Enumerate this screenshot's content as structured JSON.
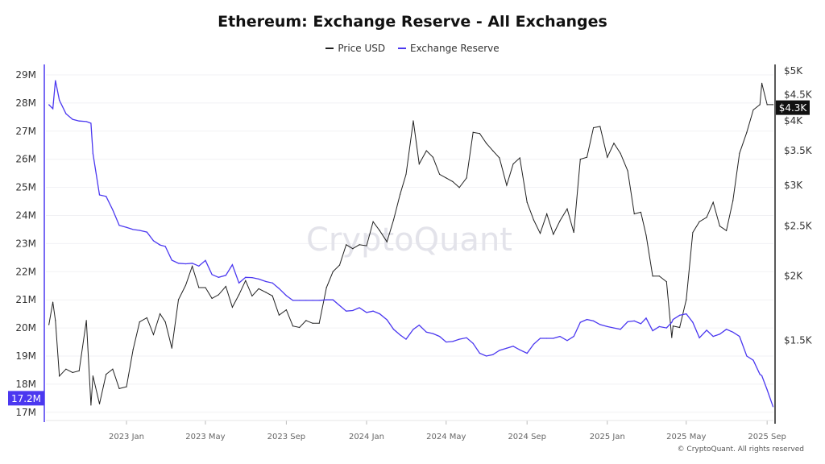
{
  "chart_data": {
    "type": "line",
    "title": "Ethereum: Exchange Reserve - All Exchanges",
    "watermark": "CryptoQuant",
    "copyright": "© CryptoQuant. All rights reserved",
    "legend_placement": "top-center",
    "grid": true,
    "x_ticks": [
      {
        "date": "2023-01-01",
        "label": "2023 Jan"
      },
      {
        "date": "2023-05-01",
        "label": "2023 May"
      },
      {
        "date": "2023-09-01",
        "label": "2023 Sep"
      },
      {
        "date": "2024-01-01",
        "label": "2024 Jan"
      },
      {
        "date": "2024-05-01",
        "label": "2024 May"
      },
      {
        "date": "2024-09-01",
        "label": "2024 Sep"
      },
      {
        "date": "2025-01-01",
        "label": "2025 Jan"
      },
      {
        "date": "2025-05-01",
        "label": "2025 May"
      },
      {
        "date": "2025-09-01",
        "label": "2025 Sep"
      }
    ],
    "left_axis": {
      "series": "Exchange Reserve",
      "ticks": [
        29000000,
        28000000,
        27000000,
        26000000,
        25000000,
        24000000,
        23000000,
        22000000,
        21000000,
        20000000,
        19000000,
        18000000,
        17000000
      ],
      "tick_labels": [
        "29M",
        "28M",
        "27M",
        "26M",
        "25M",
        "24M",
        "23M",
        "22M",
        "21M",
        "20M",
        "19M",
        "18M",
        "17M"
      ],
      "current_label": "17.2M",
      "color": "#4b38f0"
    },
    "right_axis": {
      "series": "Price USD",
      "scale": "log",
      "ticks": [
        5000,
        4500,
        4000,
        3500,
        3000,
        2500,
        2000,
        1500
      ],
      "tick_labels": [
        "$5K",
        "$4.5K",
        "$4K",
        "$3.5K",
        "$3K",
        "$2.5K",
        "$2K",
        "$1.5K"
      ],
      "current_label": "$4.3K",
      "color": "#222222"
    },
    "series": [
      {
        "name": "Price USD",
        "axis": "right",
        "color": "#222222"
      },
      {
        "name": "Exchange Reserve",
        "axis": "left",
        "color": "#4b38f0"
      }
    ],
    "points": [
      [
        "2022-09-05",
        27.94,
        1610
      ],
      [
        "2022-09-11",
        27.8,
        1780
      ],
      [
        "2022-09-15",
        28.8,
        1640
      ],
      [
        "2022-09-21",
        28.1,
        1280
      ],
      [
        "2022-10-01",
        27.62,
        1320
      ],
      [
        "2022-10-11",
        27.42,
        1300
      ],
      [
        "2022-10-21",
        27.36,
        1310
      ],
      [
        "2022-11-01",
        27.34,
        1640
      ],
      [
        "2022-11-08",
        27.28,
        1124
      ],
      [
        "2022-11-11",
        26.2,
        1280
      ],
      [
        "2022-11-21",
        24.73,
        1130
      ],
      [
        "2022-12-01",
        24.68,
        1290
      ],
      [
        "2022-12-11",
        24.2,
        1320
      ],
      [
        "2022-12-21",
        23.65,
        1210
      ],
      [
        "2023-01-01",
        23.58,
        1220
      ],
      [
        "2023-01-11",
        23.5,
        1440
      ],
      [
        "2023-01-21",
        23.47,
        1630
      ],
      [
        "2023-02-01",
        23.41,
        1660
      ],
      [
        "2023-02-11",
        23.1,
        1540
      ],
      [
        "2023-02-21",
        22.95,
        1690
      ],
      [
        "2023-03-01",
        22.9,
        1630
      ],
      [
        "2023-03-11",
        22.41,
        1450
      ],
      [
        "2023-03-21",
        22.3,
        1800
      ],
      [
        "2023-04-01",
        22.28,
        1920
      ],
      [
        "2023-04-11",
        22.3,
        2090
      ],
      [
        "2023-04-21",
        22.2,
        1900
      ],
      [
        "2023-05-01",
        22.4,
        1900
      ],
      [
        "2023-05-11",
        21.9,
        1810
      ],
      [
        "2023-05-21",
        21.8,
        1840
      ],
      [
        "2023-06-01",
        21.87,
        1910
      ],
      [
        "2023-06-11",
        22.25,
        1740
      ],
      [
        "2023-06-21",
        21.6,
        1840
      ],
      [
        "2023-07-01",
        21.8,
        1960
      ],
      [
        "2023-07-11",
        21.79,
        1830
      ],
      [
        "2023-07-21",
        21.74,
        1890
      ],
      [
        "2023-08-01",
        21.65,
        1860
      ],
      [
        "2023-08-11",
        21.6,
        1830
      ],
      [
        "2023-08-21",
        21.4,
        1680
      ],
      [
        "2023-09-01",
        21.15,
        1720
      ],
      [
        "2023-09-11",
        20.98,
        1600
      ],
      [
        "2023-09-21",
        20.98,
        1590
      ],
      [
        "2023-10-01",
        20.98,
        1640
      ],
      [
        "2023-10-11",
        20.98,
        1620
      ],
      [
        "2023-10-21",
        20.98,
        1620
      ],
      [
        "2023-11-01",
        21.0,
        1900
      ],
      [
        "2023-11-11",
        21.0,
        2040
      ],
      [
        "2023-11-21",
        20.8,
        2100
      ],
      [
        "2023-12-01",
        20.6,
        2300
      ],
      [
        "2023-12-11",
        20.62,
        2260
      ],
      [
        "2023-12-21",
        20.72,
        2300
      ],
      [
        "2024-01-01",
        20.55,
        2290
      ],
      [
        "2024-01-11",
        20.6,
        2550
      ],
      [
        "2024-01-21",
        20.5,
        2450
      ],
      [
        "2024-02-01",
        20.29,
        2330
      ],
      [
        "2024-02-11",
        19.95,
        2570
      ],
      [
        "2024-02-21",
        19.75,
        2880
      ],
      [
        "2024-03-01",
        19.6,
        3150
      ],
      [
        "2024-03-12",
        19.95,
        4000
      ],
      [
        "2024-03-21",
        20.1,
        3300
      ],
      [
        "2024-04-01",
        19.85,
        3500
      ],
      [
        "2024-04-11",
        19.8,
        3400
      ],
      [
        "2024-04-21",
        19.7,
        3150
      ],
      [
        "2024-05-01",
        19.5,
        3100
      ],
      [
        "2024-05-11",
        19.52,
        3050
      ],
      [
        "2024-05-21",
        19.6,
        2970
      ],
      [
        "2024-06-01",
        19.65,
        3100
      ],
      [
        "2024-06-11",
        19.45,
        3800
      ],
      [
        "2024-06-21",
        19.1,
        3780
      ],
      [
        "2024-07-01",
        19.0,
        3620
      ],
      [
        "2024-07-11",
        19.05,
        3500
      ],
      [
        "2024-07-21",
        19.2,
        3390
      ],
      [
        "2024-08-01",
        19.28,
        3000
      ],
      [
        "2024-08-11",
        19.35,
        3300
      ],
      [
        "2024-08-21",
        19.22,
        3390
      ],
      [
        "2024-09-01",
        19.1,
        2780
      ],
      [
        "2024-09-11",
        19.42,
        2570
      ],
      [
        "2024-09-21",
        19.63,
        2420
      ],
      [
        "2024-10-01",
        19.63,
        2640
      ],
      [
        "2024-10-11",
        19.63,
        2410
      ],
      [
        "2024-10-21",
        19.7,
        2560
      ],
      [
        "2024-11-01",
        19.55,
        2700
      ],
      [
        "2024-11-11",
        19.7,
        2430
      ],
      [
        "2024-11-21",
        20.2,
        3370
      ],
      [
        "2024-12-01",
        20.3,
        3400
      ],
      [
        "2024-12-11",
        20.25,
        3880
      ],
      [
        "2024-12-21",
        20.12,
        3900
      ],
      [
        "2025-01-01",
        20.05,
        3400
      ],
      [
        "2025-01-11",
        20.0,
        3620
      ],
      [
        "2025-01-21",
        19.95,
        3460
      ],
      [
        "2025-02-01",
        20.22,
        3200
      ],
      [
        "2025-02-11",
        20.25,
        2640
      ],
      [
        "2025-02-21",
        20.15,
        2660
      ],
      [
        "2025-03-01",
        20.35,
        2400
      ],
      [
        "2025-03-11",
        19.9,
        2000
      ],
      [
        "2025-03-21",
        20.05,
        2000
      ],
      [
        "2025-04-01",
        20.0,
        1950
      ],
      [
        "2025-04-09",
        20.2,
        1520
      ],
      [
        "2025-04-11",
        20.3,
        1600
      ],
      [
        "2025-04-21",
        20.45,
        1590
      ],
      [
        "2025-05-01",
        20.5,
        1800
      ],
      [
        "2025-05-11",
        20.2,
        2430
      ],
      [
        "2025-05-21",
        19.65,
        2550
      ],
      [
        "2025-06-01",
        19.92,
        2600
      ],
      [
        "2025-06-11",
        19.7,
        2780
      ],
      [
        "2025-06-21",
        19.78,
        2500
      ],
      [
        "2025-07-01",
        19.95,
        2450
      ],
      [
        "2025-07-11",
        19.85,
        2800
      ],
      [
        "2025-07-21",
        19.7,
        3460
      ],
      [
        "2025-08-01",
        19.0,
        3800
      ],
      [
        "2025-08-11",
        18.85,
        4200
      ],
      [
        "2025-08-21",
        18.35,
        4300
      ],
      [
        "2025-08-24",
        18.3,
        4730
      ],
      [
        "2025-09-01",
        17.8,
        4300
      ],
      [
        "2025-09-10",
        17.2,
        4300
      ]
    ],
    "points_columns": [
      "date",
      "exchange_reserve_millions",
      "price_usd"
    ]
  }
}
